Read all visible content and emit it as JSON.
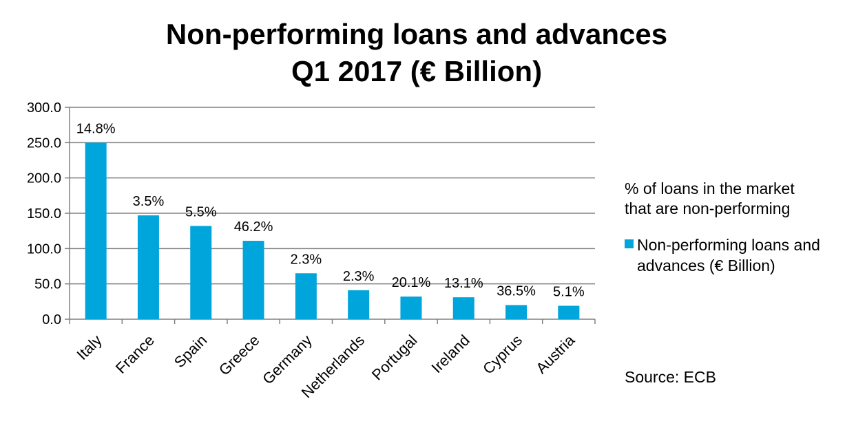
{
  "chart_data": {
    "type": "bar",
    "title": "Non-performing loans and advances",
    "subtitle": "Q1 2017 (€ Billion)",
    "categories": [
      "Italy",
      "France",
      "Spain",
      "Greece",
      "Germany",
      "Netherlands",
      "Portugal",
      "Ireland",
      "Cyprus",
      "Austria"
    ],
    "series": [
      {
        "name": "Non-performing loans and advances  (€ Billion)",
        "values": [
          250,
          147,
          132,
          111,
          65,
          41,
          32,
          31,
          20,
          19
        ],
        "color": "#00A5DB"
      }
    ],
    "data_labels": [
      "14.8%",
      "3.5%",
      "5.5%",
      "46.2%",
      "2.3%",
      "2.3%",
      "20.1%",
      "13.1%",
      "36.5%",
      "5.1%"
    ],
    "ylim": [
      0,
      300
    ],
    "yticks": [
      "0.0",
      "50.0",
      "100.0",
      "150.0",
      "200.0",
      "250.0",
      "300.0"
    ],
    "grid": true,
    "legend_position": "right"
  },
  "annotation": {
    "line1": "% of loans in the market",
    "line2": "that are non-performing"
  },
  "legend": {
    "line1": "Non-performing loans and",
    "line2": "advances  (€ Billion)"
  },
  "source": "Source: ECB"
}
